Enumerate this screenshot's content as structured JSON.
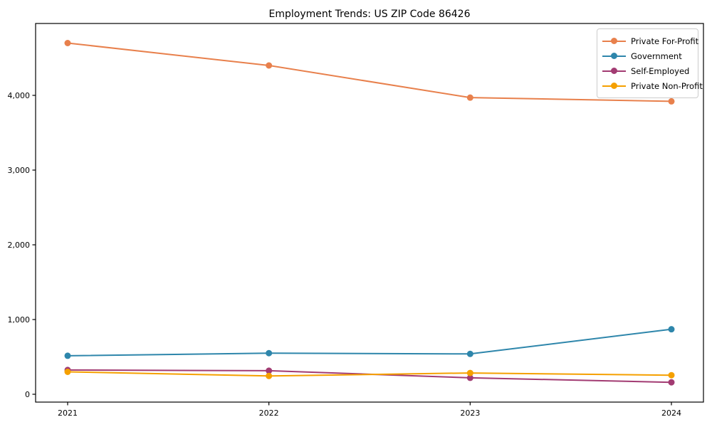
{
  "title": "Employment Trends: US ZIP Code 86426",
  "chart_data": {
    "type": "line",
    "title": "Employment Trends: US ZIP Code 86426",
    "xlabel": "",
    "ylabel": "",
    "categories": [
      "2021",
      "2022",
      "2023",
      "2024"
    ],
    "series": [
      {
        "name": "Private For-Profit",
        "color": "#E8804C",
        "values": [
          4700,
          4400,
          3970,
          3920
        ]
      },
      {
        "name": "Government",
        "color": "#2E86AB",
        "values": [
          515,
          550,
          540,
          870
        ]
      },
      {
        "name": "Self-Employed",
        "color": "#A23B72",
        "values": [
          325,
          315,
          220,
          160
        ]
      },
      {
        "name": "Private Non-Profit",
        "color": "#F5A000",
        "values": [
          300,
          245,
          285,
          255
        ]
      }
    ],
    "yticks": [
      0,
      1000,
      2000,
      3000,
      4000
    ],
    "ytick_labels": [
      "0",
      "1,000",
      "2,000",
      "3,000",
      "4,000"
    ],
    "ylim": [
      0,
      4950
    ],
    "grid": false,
    "legend_position": "upper right",
    "marker": "o",
    "axis_color": "#000000"
  }
}
